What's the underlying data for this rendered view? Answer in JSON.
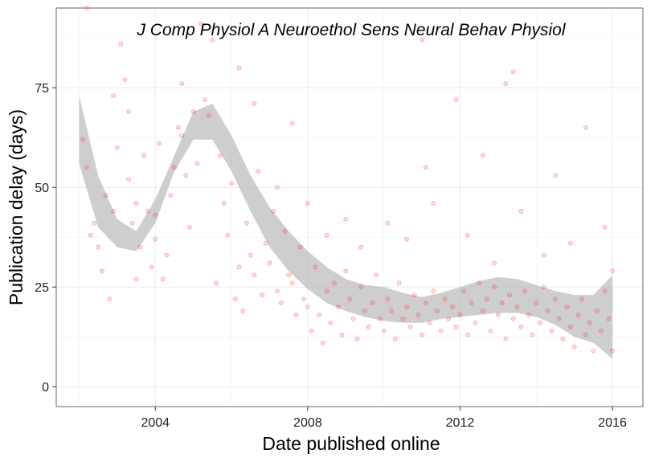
{
  "chart_data": {
    "type": "scatter",
    "title": "J Comp Physiol A Neuroethol Sens Neural Behav Physiol",
    "xlabel": "Date published online",
    "ylabel": "Publication delay (days)",
    "xlim": [
      2001.4,
      2016.8
    ],
    "ylim": [
      -5,
      95
    ],
    "x_ticks": [
      2004,
      2008,
      2012,
      2016
    ],
    "y_ticks": [
      0,
      25,
      50,
      75
    ],
    "grid": true,
    "point_color": "#ff0000",
    "point_opacity": 0.15,
    "band_color": "#b3b3b3",
    "smooth_band": {
      "x": [
        2002.0,
        2002.5,
        2003.0,
        2003.5,
        2004.0,
        2004.5,
        2005.0,
        2005.5,
        2006.0,
        2006.5,
        2007.0,
        2007.5,
        2008.0,
        2008.5,
        2009.0,
        2009.5,
        2010.0,
        2010.5,
        2011.0,
        2011.5,
        2012.0,
        2012.5,
        2013.0,
        2013.5,
        2014.0,
        2014.5,
        2015.0,
        2015.5,
        2016.0
      ],
      "upper": [
        73,
        53,
        42,
        39,
        47,
        58,
        69,
        71,
        63,
        53,
        45,
        39,
        34,
        30,
        27,
        25.5,
        25,
        23.5,
        22.5,
        23.5,
        25,
        26.5,
        27.5,
        27,
        25.5,
        24,
        23,
        23,
        28
      ],
      "lower": [
        56,
        40,
        35,
        34,
        41,
        54,
        62,
        62,
        54,
        44,
        35,
        29,
        24.5,
        21,
        19,
        17.5,
        16.5,
        16,
        16,
        17,
        17.5,
        18,
        18.5,
        18.5,
        17.5,
        15.5,
        12.5,
        11,
        7
      ]
    },
    "points": [
      [
        2002.1,
        62
      ],
      [
        2002.2,
        55
      ],
      [
        2002.3,
        38
      ],
      [
        2002.4,
        41
      ],
      [
        2002.5,
        35
      ],
      [
        2002.6,
        29
      ],
      [
        2002.7,
        48
      ],
      [
        2002.8,
        22
      ],
      [
        2002.9,
        44
      ],
      [
        2003.0,
        60
      ],
      [
        2003.1,
        86
      ],
      [
        2003.2,
        77
      ],
      [
        2003.3,
        52
      ],
      [
        2003.4,
        41
      ],
      [
        2003.5,
        27
      ],
      [
        2003.6,
        35
      ],
      [
        2003.7,
        58
      ],
      [
        2003.8,
        44
      ],
      [
        2003.9,
        30
      ],
      [
        2004.0,
        43
      ],
      [
        2004.1,
        61
      ],
      [
        2004.2,
        27
      ],
      [
        2004.3,
        33
      ],
      [
        2004.4,
        48
      ],
      [
        2004.5,
        55
      ],
      [
        2004.6,
        65
      ],
      [
        2004.7,
        76
      ],
      [
        2004.8,
        53
      ],
      [
        2004.9,
        40
      ],
      [
        2005.0,
        69
      ],
      [
        2005.1,
        56
      ],
      [
        2005.2,
        91
      ],
      [
        2005.3,
        72
      ],
      [
        2005.4,
        68
      ],
      [
        2005.6,
        26
      ],
      [
        2005.7,
        58
      ],
      [
        2005.8,
        46
      ],
      [
        2005.9,
        38
      ],
      [
        2006.0,
        51
      ],
      [
        2006.1,
        22
      ],
      [
        2006.2,
        30
      ],
      [
        2006.3,
        19
      ],
      [
        2006.4,
        41
      ],
      [
        2006.5,
        33
      ],
      [
        2006.6,
        28
      ],
      [
        2006.7,
        54
      ],
      [
        2006.8,
        23
      ],
      [
        2006.9,
        36
      ],
      [
        2007.0,
        31
      ],
      [
        2007.1,
        44
      ],
      [
        2007.2,
        24
      ],
      [
        2007.3,
        21
      ],
      [
        2007.4,
        39
      ],
      [
        2007.5,
        28
      ],
      [
        2007.6,
        26
      ],
      [
        2007.7,
        18
      ],
      [
        2007.8,
        35
      ],
      [
        2007.9,
        22
      ],
      [
        2008.0,
        20
      ],
      [
        2008.1,
        14
      ],
      [
        2008.2,
        30
      ],
      [
        2008.3,
        18
      ],
      [
        2008.4,
        11
      ],
      [
        2008.5,
        24
      ],
      [
        2008.6,
        16
      ],
      [
        2008.7,
        26
      ],
      [
        2008.8,
        20
      ],
      [
        2008.9,
        13
      ],
      [
        2009.0,
        29
      ],
      [
        2009.1,
        22
      ],
      [
        2009.2,
        17
      ],
      [
        2009.3,
        12
      ],
      [
        2009.4,
        25
      ],
      [
        2009.5,
        19
      ],
      [
        2009.6,
        15
      ],
      [
        2009.7,
        21
      ],
      [
        2009.8,
        28
      ],
      [
        2009.9,
        17
      ],
      [
        2010.0,
        14
      ],
      [
        2010.1,
        22
      ],
      [
        2010.2,
        19
      ],
      [
        2010.3,
        12
      ],
      [
        2010.4,
        26
      ],
      [
        2010.5,
        17
      ],
      [
        2010.6,
        20
      ],
      [
        2010.7,
        15
      ],
      [
        2010.8,
        23
      ],
      [
        2010.9,
        18
      ],
      [
        2011.0,
        13
      ],
      [
        2011.1,
        21
      ],
      [
        2011.2,
        16
      ],
      [
        2011.3,
        24
      ],
      [
        2011.4,
        19
      ],
      [
        2011.5,
        14
      ],
      [
        2011.6,
        22
      ],
      [
        2011.7,
        17
      ],
      [
        2011.8,
        20
      ],
      [
        2011.9,
        15
      ],
      [
        2012.0,
        18
      ],
      [
        2012.1,
        24
      ],
      [
        2012.2,
        13
      ],
      [
        2012.3,
        21
      ],
      [
        2012.4,
        16
      ],
      [
        2012.5,
        26
      ],
      [
        2012.6,
        19
      ],
      [
        2012.7,
        22
      ],
      [
        2012.8,
        14
      ],
      [
        2012.9,
        25
      ],
      [
        2013.0,
        18
      ],
      [
        2013.1,
        21
      ],
      [
        2013.2,
        12
      ],
      [
        2013.3,
        23
      ],
      [
        2013.4,
        17
      ],
      [
        2013.5,
        20
      ],
      [
        2013.6,
        15
      ],
      [
        2013.7,
        24
      ],
      [
        2013.8,
        18
      ],
      [
        2013.9,
        13
      ],
      [
        2014.0,
        21
      ],
      [
        2014.1,
        16
      ],
      [
        2014.2,
        25
      ],
      [
        2014.3,
        19
      ],
      [
        2014.4,
        14
      ],
      [
        2014.5,
        22
      ],
      [
        2014.6,
        17
      ],
      [
        2014.7,
        12
      ],
      [
        2014.8,
        20
      ],
      [
        2014.9,
        15
      ],
      [
        2015.0,
        10
      ],
      [
        2015.1,
        18
      ],
      [
        2015.2,
        22
      ],
      [
        2015.3,
        13
      ],
      [
        2015.4,
        16
      ],
      [
        2015.5,
        9
      ],
      [
        2015.6,
        19
      ],
      [
        2015.7,
        14
      ],
      [
        2015.8,
        24
      ],
      [
        2015.9,
        17
      ],
      [
        2016.0,
        29
      ],
      [
        2002.2,
        95
      ],
      [
        2002.9,
        73
      ],
      [
        2003.3,
        69
      ],
      [
        2003.5,
        46
      ],
      [
        2004.0,
        37
      ],
      [
        2004.7,
        63
      ],
      [
        2005.5,
        87
      ],
      [
        2006.2,
        80
      ],
      [
        2006.6,
        71
      ],
      [
        2007.2,
        50
      ],
      [
        2007.6,
        66
      ],
      [
        2008.0,
        46
      ],
      [
        2008.5,
        38
      ],
      [
        2009.0,
        42
      ],
      [
        2009.4,
        35
      ],
      [
        2010.1,
        41
      ],
      [
        2010.6,
        37
      ],
      [
        2011.0,
        87
      ],
      [
        2011.1,
        55
      ],
      [
        2011.3,
        46
      ],
      [
        2011.9,
        72
      ],
      [
        2012.2,
        38
      ],
      [
        2012.6,
        58
      ],
      [
        2012.9,
        31
      ],
      [
        2013.2,
        76
      ],
      [
        2013.4,
        79
      ],
      [
        2013.6,
        44
      ],
      [
        2014.2,
        33
      ],
      [
        2014.5,
        53
      ],
      [
        2014.9,
        36
      ],
      [
        2015.3,
        65
      ],
      [
        2015.8,
        40
      ],
      [
        2016.0,
        9
      ]
    ]
  }
}
